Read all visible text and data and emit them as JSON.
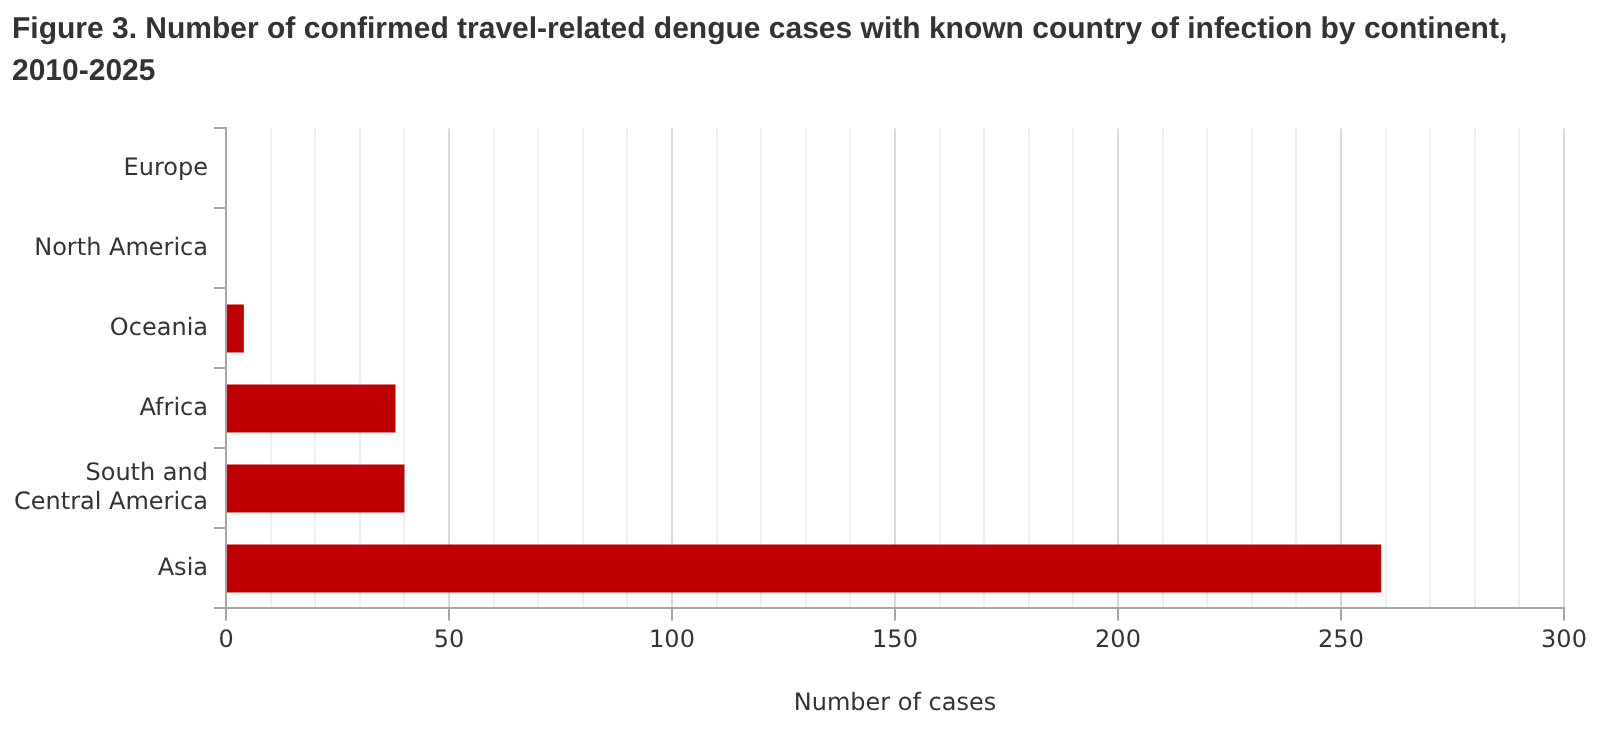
{
  "chart_data": {
    "type": "bar",
    "orientation": "horizontal",
    "title": "Figure 3. Number of confirmed travel-related dengue cases with known country of infection by continent, 2010-2025",
    "xlabel": "Number of cases",
    "categories": [
      "Europe",
      "North America",
      "Oceania",
      "Africa",
      "South and Central America",
      "Asia"
    ],
    "values": [
      0,
      0,
      4,
      38,
      40,
      259
    ],
    "color": "#c00000",
    "xlim": [
      0,
      300
    ],
    "xticks": [
      0,
      {
        "value": 10,
        "label": null
      },
      {
        "value": 20,
        "label": null
      },
      {
        "value": 30,
        "label": null
      },
      {
        "value": 40,
        "label": null
      },
      50,
      {
        "value": 60,
        "label": null
      },
      {
        "value": 70,
        "label": null
      },
      {
        "value": 80,
        "label": null
      },
      {
        "value": 90,
        "label": null
      },
      100,
      {
        "value": 110,
        "label": null
      },
      {
        "value": 120,
        "label": null
      },
      {
        "value": 130,
        "label": null
      },
      {
        "value": 140,
        "label": null
      },
      150,
      {
        "value": 160,
        "label": null
      },
      {
        "value": 170,
        "label": null
      },
      {
        "value": 180,
        "label": null
      },
      {
        "value": 190,
        "label": null
      },
      200,
      {
        "value": 210,
        "label": null
      },
      {
        "value": 220,
        "label": null
      },
      {
        "value": 230,
        "label": null
      },
      {
        "value": 240,
        "label": null
      },
      250,
      {
        "value": 260,
        "label": null
      },
      {
        "value": 270,
        "label": null
      },
      {
        "value": 280,
        "label": null
      },
      {
        "value": 290,
        "label": null
      },
      300
    ],
    "grid": "x",
    "legend": false
  }
}
